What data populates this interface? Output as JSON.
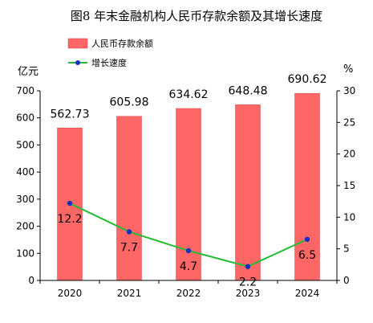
{
  "chart_data": {
    "type": "bar",
    "title": "图8 年末金融机构人民币存款余额及其增长速度",
    "categories": [
      "2020",
      "2021",
      "2022",
      "2023",
      "2024"
    ],
    "series": [
      {
        "name": "人民币存款余额",
        "type": "bar",
        "axis": "left",
        "values": [
          562.73,
          605.98,
          634.62,
          648.48,
          690.62
        ],
        "labels": [
          "562.73",
          "605.98",
          "634.62",
          "648.48",
          "690.62"
        ],
        "color": "#ff6666"
      },
      {
        "name": "增长速度",
        "type": "line",
        "axis": "right",
        "values": [
          12.2,
          7.7,
          4.7,
          2.2,
          6.5
        ],
        "labels": [
          "12.2",
          "7.7",
          "4.7",
          "2.2",
          "6.5"
        ],
        "color": "#22bb33",
        "marker_color": "#1030c0"
      }
    ],
    "left_axis": {
      "unit": "亿元",
      "min": 0,
      "max": 700,
      "ticks": [
        "0",
        "100",
        "200",
        "300",
        "400",
        "500",
        "600",
        "700"
      ]
    },
    "right_axis": {
      "unit": "%",
      "min": 0,
      "max": 30,
      "ticks": [
        "0",
        "5",
        "10",
        "15",
        "20",
        "25",
        "30"
      ]
    },
    "legend_placement": "top-left",
    "grid": false
  }
}
